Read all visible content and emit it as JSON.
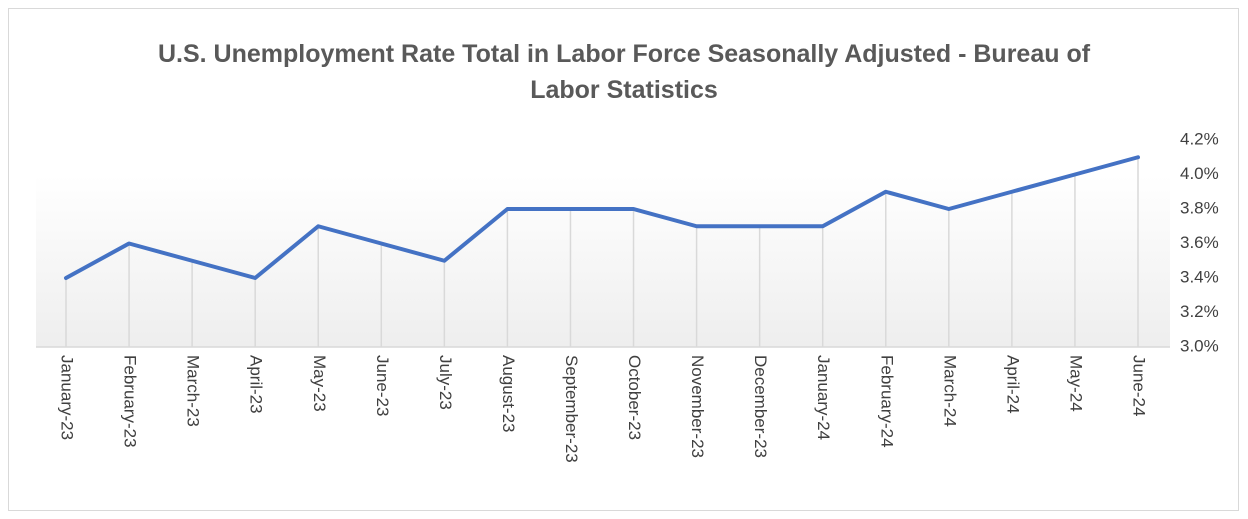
{
  "chart_data": {
    "type": "line",
    "title": "U.S. Unemployment Rate Total in Labor Force Seasonally Adjusted - Bureau of Labor Statistics",
    "categories": [
      "January-23",
      "February-23",
      "March-23",
      "April-23",
      "May-23",
      "June-23",
      "July-23",
      "August-23",
      "September-23",
      "October-23",
      "November-23",
      "December-23",
      "January-24",
      "February-24",
      "March-24",
      "April-24",
      "May-24",
      "June-24"
    ],
    "values": [
      3.4,
      3.6,
      3.5,
      3.4,
      3.7,
      3.6,
      3.5,
      3.8,
      3.8,
      3.8,
      3.7,
      3.7,
      3.7,
      3.9,
      3.8,
      3.9,
      4.0,
      4.1
    ],
    "color": "#4472c4",
    "ylim": [
      3.0,
      4.2
    ],
    "yticks": [
      {
        "value": 3.0,
        "label": "3.0%"
      },
      {
        "value": 3.2,
        "label": "3.2%"
      },
      {
        "value": 3.4,
        "label": "3.4%"
      },
      {
        "value": 3.6,
        "label": "3.6%"
      },
      {
        "value": 3.8,
        "label": "3.8%"
      },
      {
        "value": 4.0,
        "label": "4.0%"
      },
      {
        "value": 4.2,
        "label": "4.2%"
      }
    ],
    "drop_lines": true
  }
}
